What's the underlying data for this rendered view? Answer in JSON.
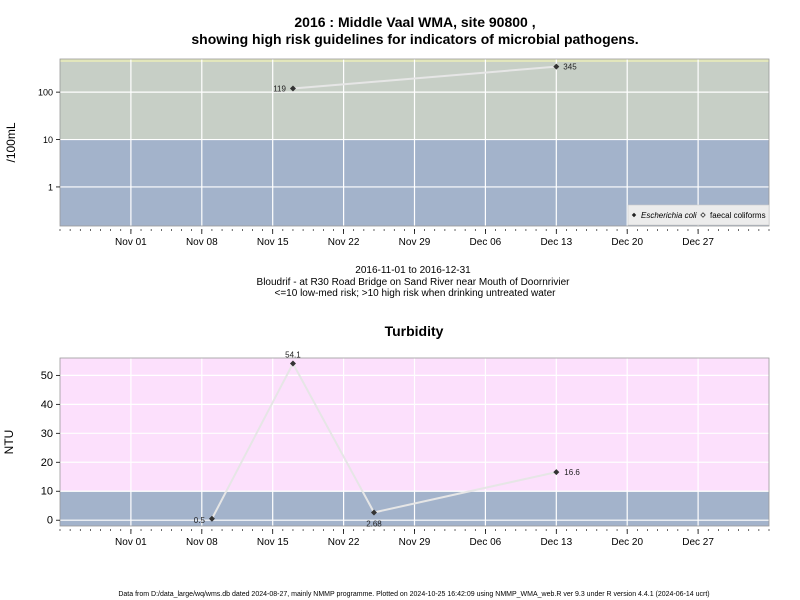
{
  "header": {
    "title_line1": "2016 : Middle Vaal WMA, site 90800 ,",
    "title_line2": "showing high risk guidelines for indicators of microbial pathogens."
  },
  "info": {
    "date_range": "2016-11-01 to 2016-12-31",
    "site": "Bloudrif - at R30 Road Bridge on Sand River near Mouth of Doornrivier",
    "guideline": "<=10 low-med risk; >10 high risk when drinking untreated water"
  },
  "footer": {
    "text": "Data from D:/data_large/wq/wms.db dated 2024-08-27, mainly NMMP programme. Plotted on 2024-10-25 16:42:09 using NMMP_WMA_web.R ver 9.3 under R version 4.4.1 (2024-06-14 ucrt)"
  },
  "colors": {
    "low_risk_band": "#a3b3cb",
    "high_risk_band_micro": "#c7cfc6",
    "high_risk_band_turb": "#fce0fc",
    "top_strip": "#e2e6bc",
    "grid": "#ffffff",
    "line": "#e6e6e6",
    "marker": "#333333"
  },
  "chart_data": [
    {
      "type": "line",
      "title": "",
      "ylabel": "/100mL",
      "yscale": "log",
      "ylim": [
        0.15,
        500
      ],
      "xlim": [
        "2016-10-25",
        "2017-01-03"
      ],
      "yticks": [
        {
          "value": 1,
          "label": "1"
        },
        {
          "value": 10,
          "label": "10"
        },
        {
          "value": 100,
          "label": "100"
        }
      ],
      "xticks": [
        {
          "date": "2016-11-01",
          "label": "Nov 01"
        },
        {
          "date": "2016-11-08",
          "label": "Nov 08"
        },
        {
          "date": "2016-11-15",
          "label": "Nov 15"
        },
        {
          "date": "2016-11-22",
          "label": "Nov 22"
        },
        {
          "date": "2016-11-29",
          "label": "Nov 29"
        },
        {
          "date": "2016-12-06",
          "label": "Dec 06"
        },
        {
          "date": "2016-12-13",
          "label": "Dec 13"
        },
        {
          "date": "2016-12-20",
          "label": "Dec 20"
        },
        {
          "date": "2016-12-27",
          "label": "Dec 27"
        }
      ],
      "threshold": 10,
      "legend": {
        "position": "bottom-right",
        "entries": [
          {
            "label": "Escherichia coli",
            "symbol": "filled-diamond"
          },
          {
            "label": "faecal coliforms",
            "symbol": "open-diamond"
          }
        ]
      },
      "series": [
        {
          "name": "Escherichia coli",
          "points": [
            {
              "x": "2016-11-17",
              "y": 119,
              "label": "119"
            },
            {
              "x": "2016-12-13",
              "y": 345,
              "label": "345"
            }
          ]
        }
      ]
    },
    {
      "type": "line",
      "title": "Turbidity",
      "ylabel": "NTU",
      "yscale": "linear",
      "ylim": [
        -2,
        56
      ],
      "xlim": [
        "2016-10-25",
        "2017-01-03"
      ],
      "yticks": [
        {
          "value": 0,
          "label": "0"
        },
        {
          "value": 10,
          "label": "10"
        },
        {
          "value": 20,
          "label": "20"
        },
        {
          "value": 30,
          "label": "30"
        },
        {
          "value": 40,
          "label": "40"
        },
        {
          "value": 50,
          "label": "50"
        }
      ],
      "xticks": [
        {
          "date": "2016-11-01",
          "label": "Nov 01"
        },
        {
          "date": "2016-11-08",
          "label": "Nov 08"
        },
        {
          "date": "2016-11-15",
          "label": "Nov 15"
        },
        {
          "date": "2016-11-22",
          "label": "Nov 22"
        },
        {
          "date": "2016-11-29",
          "label": "Nov 29"
        },
        {
          "date": "2016-12-06",
          "label": "Dec 06"
        },
        {
          "date": "2016-12-13",
          "label": "Dec 13"
        },
        {
          "date": "2016-12-20",
          "label": "Dec 20"
        },
        {
          "date": "2016-12-27",
          "label": "Dec 27"
        }
      ],
      "threshold": 10,
      "series": [
        {
          "name": "",
          "points": [
            {
              "x": "2016-11-09",
              "y": 0.5,
              "label": "0.5"
            },
            {
              "x": "2016-11-17",
              "y": 54.1,
              "label": "54.1"
            },
            {
              "x": "2016-11-25",
              "y": 2.68,
              "label": "2.68"
            },
            {
              "x": "2016-12-13",
              "y": 16.6,
              "label": "16.6"
            }
          ]
        }
      ]
    }
  ]
}
